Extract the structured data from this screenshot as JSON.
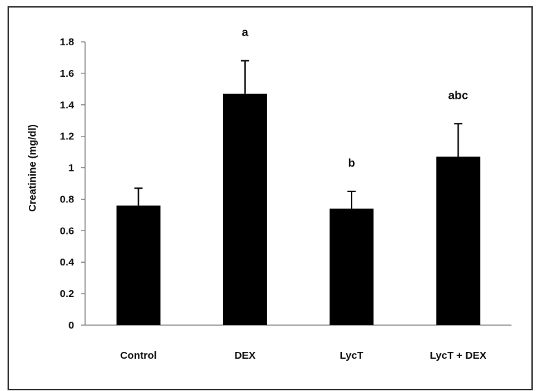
{
  "chart_data": {
    "type": "bar",
    "title": "",
    "xlabel": "",
    "ylabel": "Creatinine (mg/dl)",
    "ylim": [
      0,
      1.8
    ],
    "yticks": [
      "0",
      "0.2",
      "0.4",
      "0.6",
      "0.8",
      "1",
      "1.2",
      "1.4",
      "1.6",
      "1.8"
    ],
    "categories": [
      "Control",
      "DEX",
      "LycT",
      "LycT + DEX"
    ],
    "values": [
      0.76,
      1.47,
      0.74,
      1.07
    ],
    "errors": [
      0.11,
      0.21,
      0.11,
      0.21
    ],
    "annotations": [
      "",
      "a",
      "b",
      "abc"
    ],
    "grid": false,
    "bar_color": "#000000"
  }
}
